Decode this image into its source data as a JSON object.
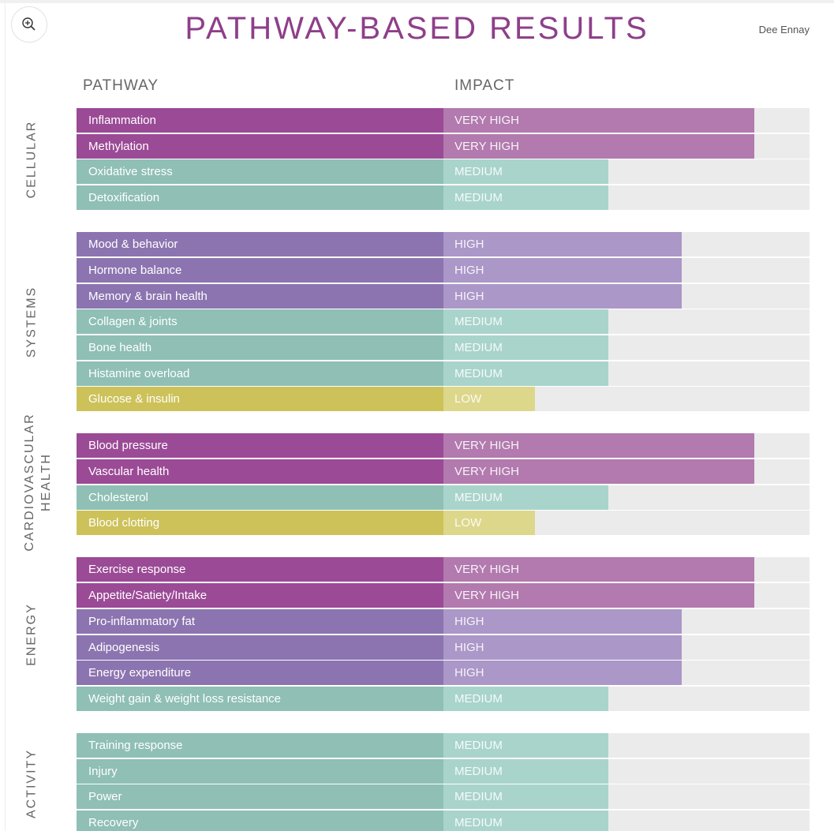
{
  "title": "PATHWAY-BASED RESULTS",
  "author": "Dee Ennay",
  "zoom_icon": "zoom-in-icon",
  "chart_data": {
    "type": "bar",
    "title": "PATHWAY-BASED RESULTS",
    "xlabel": "IMPACT",
    "ylabel": "PATHWAY",
    "levels": {
      "LOW": 0.25,
      "MEDIUM": 0.45,
      "HIGH": 0.65,
      "VERY HIGH": 0.85
    },
    "colors": {
      "VERY HIGH": [
        "#9b4a96",
        "#b27aae"
      ],
      "HIGH": [
        "#8c74b0",
        "#ab97c8"
      ],
      "MEDIUM": [
        "#8fbfb5",
        "#a9d4cb"
      ],
      "LOW": [
        "#cdc25a",
        "#ddd78c"
      ],
      "track": "#ebebeb"
    },
    "groups": [
      {
        "label": "CELLULAR",
        "rows": [
          [
            "Inflammation",
            "VERY HIGH"
          ],
          [
            "Methylation",
            "VERY HIGH"
          ],
          [
            "Oxidative stress",
            "MEDIUM"
          ],
          [
            "Detoxification",
            "MEDIUM"
          ]
        ]
      },
      {
        "label": "SYSTEMS",
        "rows": [
          [
            "Mood & behavior",
            "HIGH"
          ],
          [
            "Hormone balance",
            "HIGH"
          ],
          [
            "Memory & brain health",
            "HIGH"
          ],
          [
            "Collagen & joints",
            "MEDIUM"
          ],
          [
            "Bone health",
            "MEDIUM"
          ],
          [
            "Histamine overload",
            "MEDIUM"
          ],
          [
            "Glucose & insulin",
            "LOW"
          ]
        ]
      },
      {
        "label": "CARDIOVASCULAR HEALTH",
        "rows": [
          [
            "Blood pressure",
            "VERY HIGH"
          ],
          [
            "Vascular health",
            "VERY HIGH"
          ],
          [
            "Cholesterol",
            "MEDIUM"
          ],
          [
            "Blood clotting",
            "LOW"
          ]
        ]
      },
      {
        "label": "ENERGY",
        "rows": [
          [
            "Exercise response",
            "VERY HIGH"
          ],
          [
            "Appetite/Satiety/Intake",
            "VERY HIGH"
          ],
          [
            "Pro-inflammatory fat",
            "HIGH"
          ],
          [
            "Adipogenesis",
            "HIGH"
          ],
          [
            "Energy expenditure",
            "HIGH"
          ],
          [
            "Weight gain & weight loss resistance",
            "MEDIUM"
          ]
        ]
      },
      {
        "label": "ACTIVITY",
        "rows": [
          [
            "Training response",
            "MEDIUM"
          ],
          [
            "Injury",
            "MEDIUM"
          ],
          [
            "Power",
            "MEDIUM"
          ],
          [
            "Recovery",
            "MEDIUM"
          ]
        ]
      }
    ]
  }
}
